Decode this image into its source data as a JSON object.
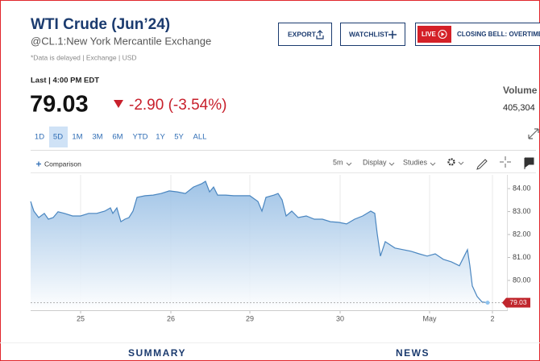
{
  "header": {
    "title": "WTI Crude (Jun’24)",
    "subtitle": "@CL.1:New York Mercantile Exchange",
    "note": "*Data is delayed | Exchange | USD"
  },
  "buttons": {
    "export": "EXPORT",
    "watchlist": "WATCHLIST",
    "live": "LIVE",
    "closing_bell": "CLOSING BELL: OVERTIME"
  },
  "quote": {
    "last_time": "Last | 4:00 PM EDT",
    "price": "79.03",
    "change": "-2.90 (-3.54%)",
    "volume_label": "Volume",
    "volume": "405,304"
  },
  "ranges": [
    "1D",
    "5D",
    "1M",
    "3M",
    "6M",
    "YTD",
    "1Y",
    "5Y",
    "ALL"
  ],
  "selected_range": 1,
  "toolbar": {
    "comparison": "Comparison",
    "interval": "5m",
    "display": "Display",
    "studies": "Studies"
  },
  "chart_data": {
    "type": "line",
    "color": "#4a86c0",
    "x": [
      0,
      0.4,
      1,
      1.7,
      2.2,
      2.8,
      3.4,
      4.2,
      5.2,
      6.2,
      7.2,
      8.2,
      9.2,
      9.9,
      10.2,
      10.7,
      11.2,
      11.7,
      12.2,
      12.7,
      13.2,
      14.2,
      15.2,
      16.2,
      17.2,
      18.2,
      19.2,
      20.2,
      21.2,
      21.7,
      22.2,
      22.7,
      23.2,
      24.2,
      25.2,
      26.2,
      27.2,
      28.2,
      28.7,
      29.2,
      30.2,
      30.7,
      31.2,
      31.7,
      32.4,
      33.2,
      34.2,
      35.2,
      36.2,
      37.2,
      38.2,
      39.2,
      40.2,
      41.2,
      42.2,
      42.7,
      43,
      43.4,
      44,
      45.2,
      46.2,
      47.2,
      48.2,
      49.2,
      50.2,
      51.2,
      52.2,
      53.2,
      53.7,
      54.2,
      54.5,
      54.8,
      55.4,
      56,
      56.7
    ],
    "values": [
      83.44,
      83.02,
      82.74,
      82.92,
      82.67,
      82.74,
      82.99,
      82.92,
      82.81,
      82.81,
      82.92,
      82.92,
      83.02,
      83.16,
      82.92,
      83.16,
      82.56,
      82.67,
      82.74,
      83.02,
      83.62,
      83.69,
      83.72,
      83.79,
      83.9,
      83.86,
      83.79,
      84.07,
      84.21,
      84.32,
      83.86,
      84.07,
      83.72,
      83.72,
      83.69,
      83.69,
      83.69,
      83.44,
      83.02,
      83.62,
      83.72,
      83.79,
      83.51,
      82.81,
      83.02,
      82.74,
      82.81,
      82.67,
      82.67,
      82.56,
      82.53,
      82.46,
      82.67,
      82.81,
      83.02,
      82.92,
      82.04,
      81.06,
      81.69,
      81.41,
      81.34,
      81.27,
      81.16,
      81.06,
      81.16,
      80.92,
      80.81,
      80.64,
      80.99,
      81.34,
      80.64,
      79.76,
      79.3,
      79.06,
      79.03
    ],
    "xlim": [
      0,
      58.7
    ],
    "xticks": [
      {
        "value": 6.2,
        "label": "25"
      },
      {
        "value": 17.4,
        "label": "26"
      },
      {
        "value": 27.2,
        "label": "29"
      },
      {
        "value": 38.4,
        "label": "30"
      },
      {
        "value": 49.5,
        "label": "May"
      },
      {
        "value": 57.3,
        "label": "2"
      }
    ],
    "ylim": [
      78.7,
      84.6
    ],
    "yticks": [
      {
        "value": 84,
        "label": "84.00"
      },
      {
        "value": 83,
        "label": "83.00"
      },
      {
        "value": 82,
        "label": "82.00"
      },
      {
        "value": 81,
        "label": "81.00"
      },
      {
        "value": 80,
        "label": "80.00"
      }
    ],
    "grid": true
  },
  "tabs": [
    "SUMMARY",
    "NEWS"
  ]
}
